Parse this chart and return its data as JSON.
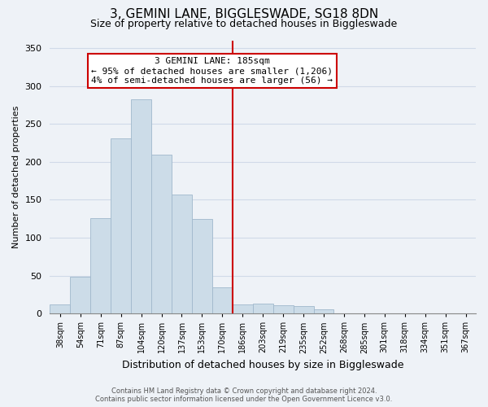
{
  "title": "3, GEMINI LANE, BIGGLESWADE, SG18 8DN",
  "subtitle": "Size of property relative to detached houses in Biggleswade",
  "xlabel": "Distribution of detached houses by size in Biggleswade",
  "ylabel": "Number of detached properties",
  "bin_labels": [
    "38sqm",
    "54sqm",
    "71sqm",
    "87sqm",
    "104sqm",
    "120sqm",
    "137sqm",
    "153sqm",
    "170sqm",
    "186sqm",
    "203sqm",
    "219sqm",
    "235sqm",
    "252sqm",
    "268sqm",
    "285sqm",
    "301sqm",
    "318sqm",
    "334sqm",
    "351sqm",
    "367sqm"
  ],
  "bar_values": [
    12,
    48,
    126,
    231,
    283,
    210,
    157,
    125,
    34,
    12,
    13,
    11,
    10,
    6,
    0,
    0,
    0,
    0,
    0,
    0,
    0
  ],
  "bar_color": "#ccdce8",
  "bar_edge_color": "#a0b8cc",
  "vline_index": 9,
  "vline_color": "#cc0000",
  "annotation_title": "3 GEMINI LANE: 185sqm",
  "annotation_line1": "← 95% of detached houses are smaller (1,206)",
  "annotation_line2": "4% of semi-detached houses are larger (56) →",
  "annotation_box_color": "#ffffff",
  "annotation_box_edge": "#cc0000",
  "ylim": [
    0,
    360
  ],
  "yticks": [
    0,
    50,
    100,
    150,
    200,
    250,
    300,
    350
  ],
  "footer_line1": "Contains HM Land Registry data © Crown copyright and database right 2024.",
  "footer_line2": "Contains public sector information licensed under the Open Government Licence v3.0.",
  "background_color": "#eef2f7",
  "grid_color": "#d0dae8",
  "title_fontsize": 11,
  "subtitle_fontsize": 9,
  "ylabel_fontsize": 8,
  "xlabel_fontsize": 9,
  "tick_fontsize": 7,
  "ytick_fontsize": 8,
  "footer_fontsize": 6,
  "ann_fontsize": 8
}
